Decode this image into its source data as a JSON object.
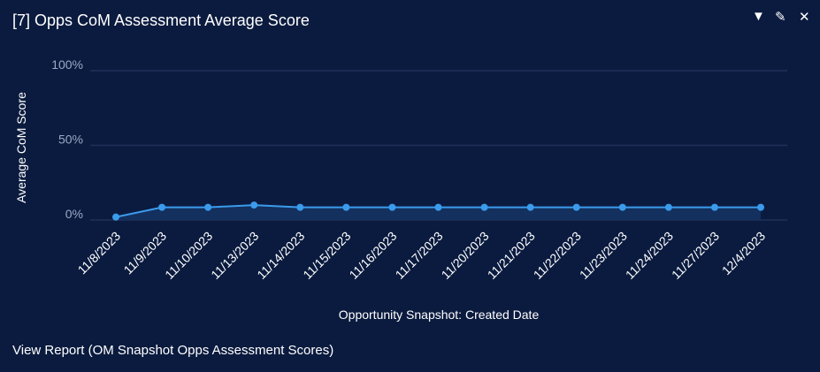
{
  "header": {
    "title": "[7] Opps CoM Assessment Average Score"
  },
  "footer": {
    "link": "View Report (OM Snapshot Opps Assessment Scores)"
  },
  "chart_data": {
    "type": "area",
    "title": "[7] Opps CoM Assessment Average Score",
    "xlabel": "Opportunity Snapshot: Created Date",
    "ylabel": "Average CoM Score",
    "categories": [
      "11/8/2023",
      "11/9/2023",
      "11/10/2023",
      "11/13/2023",
      "11/14/2023",
      "11/15/2023",
      "11/16/2023",
      "11/17/2023",
      "11/20/2023",
      "11/21/2023",
      "11/22/2023",
      "11/23/2023",
      "11/24/2023",
      "11/27/2023",
      "12/4/2023"
    ],
    "values": [
      2,
      8.5,
      8.5,
      10,
      8.5,
      8.5,
      8.5,
      8.5,
      8.5,
      8.5,
      8.5,
      8.5,
      8.5,
      8.5,
      8.5
    ],
    "yticks": [
      "0%",
      "50%",
      "100%"
    ],
    "ylim": [
      0,
      100
    ],
    "grid": true,
    "colors": {
      "line": "#3b9bec",
      "fill": "#13305e",
      "grid": "#1f3158"
    }
  }
}
